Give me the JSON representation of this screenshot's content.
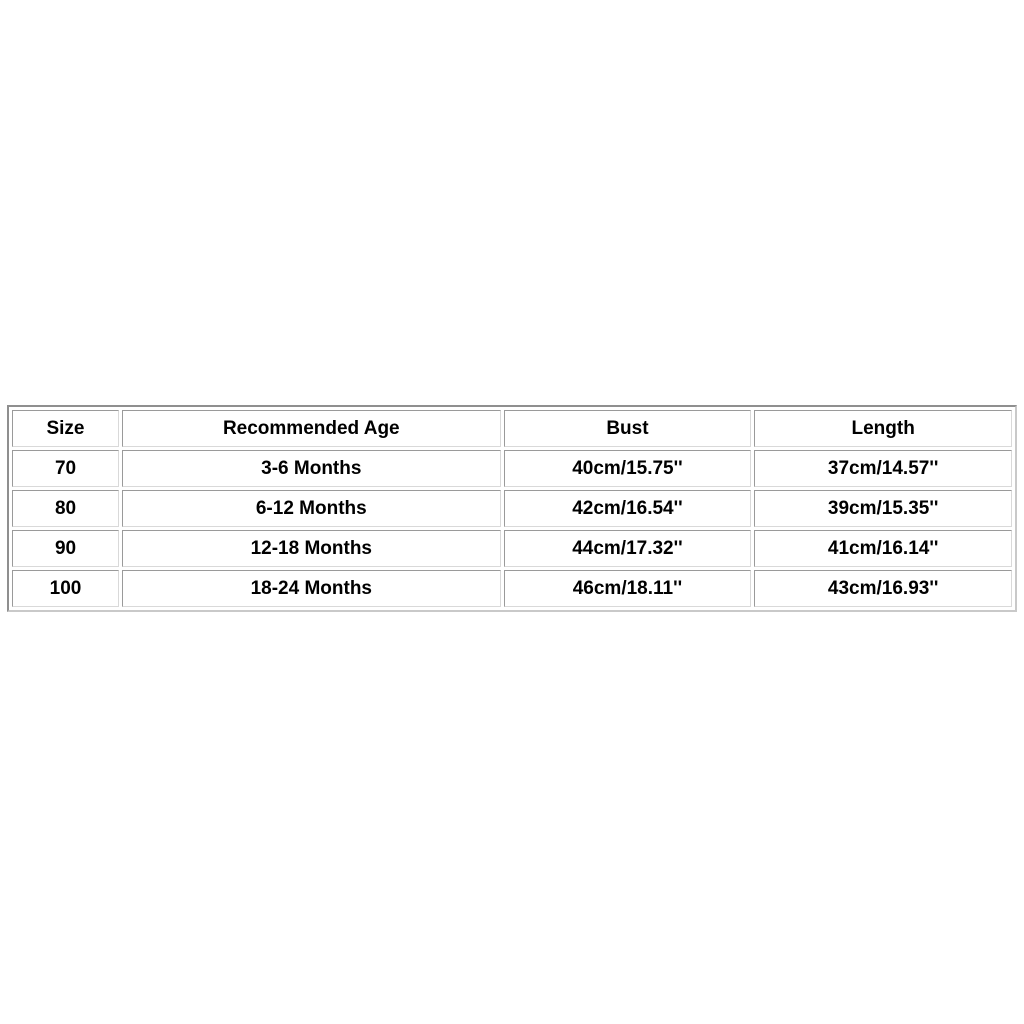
{
  "chart_data": {
    "type": "table",
    "title": "",
    "columns": [
      "Size",
      "Recommended Age",
      "Bust",
      "Length"
    ],
    "rows": [
      [
        "70",
        "3-6 Months",
        "40cm/15.75''",
        "37cm/14.57''"
      ],
      [
        "80",
        "6-12 Months",
        "42cm/16.54''",
        "39cm/15.35''"
      ],
      [
        "90",
        "12-18 Months",
        "44cm/17.32''",
        "41cm/16.14''"
      ],
      [
        "100",
        "18-24 Months",
        "46cm/18.11''",
        "43cm/16.93''"
      ]
    ],
    "layout": {
      "background": "#ffffff",
      "border_color": "#9a9a9a",
      "text_color": "#000000",
      "grid": "beveled-cell-borders"
    }
  }
}
